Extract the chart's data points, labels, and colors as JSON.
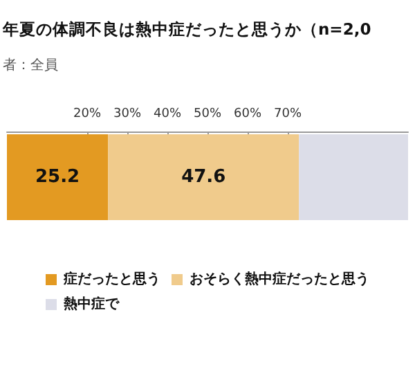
{
  "chart_data": {
    "type": "bar",
    "title": "年夏の体調不良は熱中症だったと思うか（n=2,0",
    "subtitle": "者：全員",
    "orientation": "horizontal",
    "stacked": true,
    "categories": [
      null
    ],
    "series": [
      {
        "name": "症だったと思う",
        "color": "#e39a22",
        "values": [
          25.2
        ],
        "value_labels": [
          "25.2"
        ]
      },
      {
        "name": "おそらく熱中症だったと思う",
        "color": "#f0cb8c",
        "values": [
          47.6
        ],
        "value_labels": [
          "47.6"
        ]
      },
      {
        "name": "熱中症で",
        "color": "#dcdde8",
        "values": [
          27.2
        ],
        "value_labels": [
          null
        ]
      }
    ],
    "xlim": [
      0,
      100
    ],
    "xticks": [
      {
        "value": 20,
        "label": "20%"
      },
      {
        "value": 30,
        "label": "30%"
      },
      {
        "value": 40,
        "label": "40%"
      },
      {
        "value": 50,
        "label": "50%"
      },
      {
        "value": 60,
        "label": "60%"
      },
      {
        "value": 70,
        "label": "70%"
      }
    ],
    "legend": "bottom",
    "grid": false,
    "tick_labels": "x"
  }
}
